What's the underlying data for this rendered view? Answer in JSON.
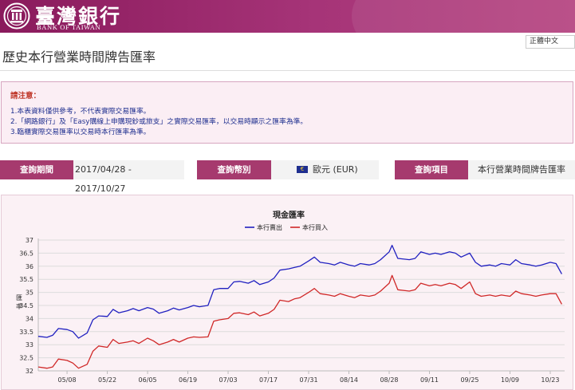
{
  "header": {
    "logo_cn": "臺灣銀行",
    "logo_en": "BANK OF TAIWAN",
    "gradient_from": "#8a1a5c",
    "gradient_to": "#b5437f"
  },
  "language": {
    "selected": "正體中文"
  },
  "page_title": "歷史本行營業時間牌告匯率",
  "notice": {
    "title": "請注意：",
    "lines": [
      "1.本表資料僅供參考，不代表實際交易匯率。",
      "2.「網路銀行」及「Easy購線上申購現鈔或旅支」之實際交易匯率，以交易時顯示之匯率為準。",
      "3.臨櫃實際交易匯率以交易時本行匯率為準。"
    ]
  },
  "query": {
    "period_label": "查詢期間",
    "period_value": "2017/04/28 - 2017/10/27",
    "currency_label": "查詢幣別",
    "currency_value": "歐元 (EUR)",
    "item_label": "查詢項目",
    "item_value": "本行營業時間牌告匯率"
  },
  "chart_data": {
    "type": "line",
    "title": "現金匯率",
    "ylabel": "匯率",
    "ylim": [
      32,
      37
    ],
    "yticks": [
      32,
      32.5,
      33,
      33.5,
      34,
      34.5,
      35,
      35.5,
      36,
      36.5,
      37
    ],
    "xticks": [
      "05/08",
      "05/22",
      "06/05",
      "06/19",
      "07/03",
      "07/17",
      "07/31",
      "08/14",
      "08/28",
      "09/11",
      "09/25",
      "10/09",
      "10/23"
    ],
    "legend_position": "top-center",
    "grid": "horizontal",
    "series": [
      {
        "name": "本行賣出",
        "color": "#2020c0",
        "points": [
          [
            "2017-04-28",
            33.32
          ],
          [
            "2017-05-01",
            33.28
          ],
          [
            "2017-05-03",
            33.36
          ],
          [
            "2017-05-05",
            33.62
          ],
          [
            "2017-05-08",
            33.58
          ],
          [
            "2017-05-10",
            33.5
          ],
          [
            "2017-05-12",
            33.25
          ],
          [
            "2017-05-15",
            33.45
          ],
          [
            "2017-05-17",
            33.95
          ],
          [
            "2017-05-19",
            34.1
          ],
          [
            "2017-05-22",
            34.08
          ],
          [
            "2017-05-24",
            34.35
          ],
          [
            "2017-05-26",
            34.22
          ],
          [
            "2017-05-29",
            34.3
          ],
          [
            "2017-05-31",
            34.38
          ],
          [
            "2017-06-02",
            34.3
          ],
          [
            "2017-06-05",
            34.42
          ],
          [
            "2017-06-07",
            34.36
          ],
          [
            "2017-06-09",
            34.2
          ],
          [
            "2017-06-12",
            34.3
          ],
          [
            "2017-06-14",
            34.4
          ],
          [
            "2017-06-16",
            34.33
          ],
          [
            "2017-06-19",
            34.42
          ],
          [
            "2017-06-21",
            34.5
          ],
          [
            "2017-06-23",
            34.45
          ],
          [
            "2017-06-26",
            34.5
          ],
          [
            "2017-06-28",
            35.1
          ],
          [
            "2017-06-30",
            35.15
          ],
          [
            "2017-07-03",
            35.15
          ],
          [
            "2017-07-05",
            35.4
          ],
          [
            "2017-07-07",
            35.42
          ],
          [
            "2017-07-10",
            35.35
          ],
          [
            "2017-07-12",
            35.45
          ],
          [
            "2017-07-14",
            35.3
          ],
          [
            "2017-07-17",
            35.4
          ],
          [
            "2017-07-19",
            35.55
          ],
          [
            "2017-07-21",
            35.85
          ],
          [
            "2017-07-24",
            35.9
          ],
          [
            "2017-07-26",
            35.95
          ],
          [
            "2017-07-28",
            36.0
          ],
          [
            "2017-07-31",
            36.2
          ],
          [
            "2017-08-02",
            36.35
          ],
          [
            "2017-08-04",
            36.15
          ],
          [
            "2017-08-07",
            36.1
          ],
          [
            "2017-08-09",
            36.05
          ],
          [
            "2017-08-11",
            36.15
          ],
          [
            "2017-08-14",
            36.05
          ],
          [
            "2017-08-16",
            36.0
          ],
          [
            "2017-08-18",
            36.1
          ],
          [
            "2017-08-21",
            36.05
          ],
          [
            "2017-08-23",
            36.1
          ],
          [
            "2017-08-25",
            36.25
          ],
          [
            "2017-08-28",
            36.55
          ],
          [
            "2017-08-29",
            36.8
          ],
          [
            "2017-08-31",
            36.3
          ],
          [
            "2017-09-04",
            36.25
          ],
          [
            "2017-09-06",
            36.3
          ],
          [
            "2017-09-08",
            36.55
          ],
          [
            "2017-09-11",
            36.45
          ],
          [
            "2017-09-13",
            36.5
          ],
          [
            "2017-09-15",
            36.45
          ],
          [
            "2017-09-18",
            36.55
          ],
          [
            "2017-09-20",
            36.5
          ],
          [
            "2017-09-22",
            36.35
          ],
          [
            "2017-09-25",
            36.5
          ],
          [
            "2017-09-27",
            36.15
          ],
          [
            "2017-09-29",
            36.0
          ],
          [
            "2017-10-02",
            36.05
          ],
          [
            "2017-10-04",
            36.0
          ],
          [
            "2017-10-06",
            36.1
          ],
          [
            "2017-10-09",
            36.05
          ],
          [
            "2017-10-11",
            36.25
          ],
          [
            "2017-10-13",
            36.1
          ],
          [
            "2017-10-16",
            36.05
          ],
          [
            "2017-10-18",
            36.0
          ],
          [
            "2017-10-20",
            36.05
          ],
          [
            "2017-10-23",
            36.15
          ],
          [
            "2017-10-25",
            36.1
          ],
          [
            "2017-10-27",
            35.7
          ]
        ]
      },
      {
        "name": "本行買入",
        "color": "#d02828",
        "points": [
          [
            "2017-04-28",
            32.15
          ],
          [
            "2017-05-01",
            32.1
          ],
          [
            "2017-05-03",
            32.15
          ],
          [
            "2017-05-05",
            32.45
          ],
          [
            "2017-05-08",
            32.4
          ],
          [
            "2017-05-10",
            32.3
          ],
          [
            "2017-05-12",
            32.1
          ],
          [
            "2017-05-15",
            32.25
          ],
          [
            "2017-05-17",
            32.75
          ],
          [
            "2017-05-19",
            32.95
          ],
          [
            "2017-05-22",
            32.9
          ],
          [
            "2017-05-24",
            33.2
          ],
          [
            "2017-05-26",
            33.05
          ],
          [
            "2017-05-29",
            33.1
          ],
          [
            "2017-05-31",
            33.15
          ],
          [
            "2017-06-02",
            33.05
          ],
          [
            "2017-06-05",
            33.25
          ],
          [
            "2017-06-07",
            33.15
          ],
          [
            "2017-06-09",
            33.0
          ],
          [
            "2017-06-12",
            33.1
          ],
          [
            "2017-06-14",
            33.2
          ],
          [
            "2017-06-16",
            33.1
          ],
          [
            "2017-06-19",
            33.25
          ],
          [
            "2017-06-21",
            33.3
          ],
          [
            "2017-06-23",
            33.28
          ],
          [
            "2017-06-26",
            33.3
          ],
          [
            "2017-06-28",
            33.9
          ],
          [
            "2017-06-30",
            33.95
          ],
          [
            "2017-07-03",
            34.0
          ],
          [
            "2017-07-05",
            34.2
          ],
          [
            "2017-07-07",
            34.22
          ],
          [
            "2017-07-10",
            34.15
          ],
          [
            "2017-07-12",
            34.25
          ],
          [
            "2017-07-14",
            34.1
          ],
          [
            "2017-07-17",
            34.2
          ],
          [
            "2017-07-19",
            34.35
          ],
          [
            "2017-07-21",
            34.7
          ],
          [
            "2017-07-24",
            34.65
          ],
          [
            "2017-07-26",
            34.75
          ],
          [
            "2017-07-28",
            34.8
          ],
          [
            "2017-07-31",
            35.0
          ],
          [
            "2017-08-02",
            35.15
          ],
          [
            "2017-08-04",
            34.95
          ],
          [
            "2017-08-07",
            34.9
          ],
          [
            "2017-08-09",
            34.85
          ],
          [
            "2017-08-11",
            34.95
          ],
          [
            "2017-08-14",
            34.85
          ],
          [
            "2017-08-16",
            34.8
          ],
          [
            "2017-08-18",
            34.9
          ],
          [
            "2017-08-21",
            34.85
          ],
          [
            "2017-08-23",
            34.9
          ],
          [
            "2017-08-25",
            35.05
          ],
          [
            "2017-08-28",
            35.35
          ],
          [
            "2017-08-29",
            35.65
          ],
          [
            "2017-08-31",
            35.1
          ],
          [
            "2017-09-04",
            35.05
          ],
          [
            "2017-09-06",
            35.1
          ],
          [
            "2017-09-08",
            35.35
          ],
          [
            "2017-09-11",
            35.25
          ],
          [
            "2017-09-13",
            35.3
          ],
          [
            "2017-09-15",
            35.25
          ],
          [
            "2017-09-18",
            35.35
          ],
          [
            "2017-09-20",
            35.3
          ],
          [
            "2017-09-22",
            35.15
          ],
          [
            "2017-09-25",
            35.4
          ],
          [
            "2017-09-27",
            34.95
          ],
          [
            "2017-09-29",
            34.85
          ],
          [
            "2017-10-02",
            34.9
          ],
          [
            "2017-10-04",
            34.85
          ],
          [
            "2017-10-06",
            34.9
          ],
          [
            "2017-10-09",
            34.85
          ],
          [
            "2017-10-11",
            35.05
          ],
          [
            "2017-10-13",
            34.95
          ],
          [
            "2017-10-16",
            34.9
          ],
          [
            "2017-10-18",
            34.85
          ],
          [
            "2017-10-20",
            34.9
          ],
          [
            "2017-10-23",
            34.95
          ],
          [
            "2017-10-25",
            34.95
          ],
          [
            "2017-10-27",
            34.55
          ]
        ]
      }
    ]
  }
}
